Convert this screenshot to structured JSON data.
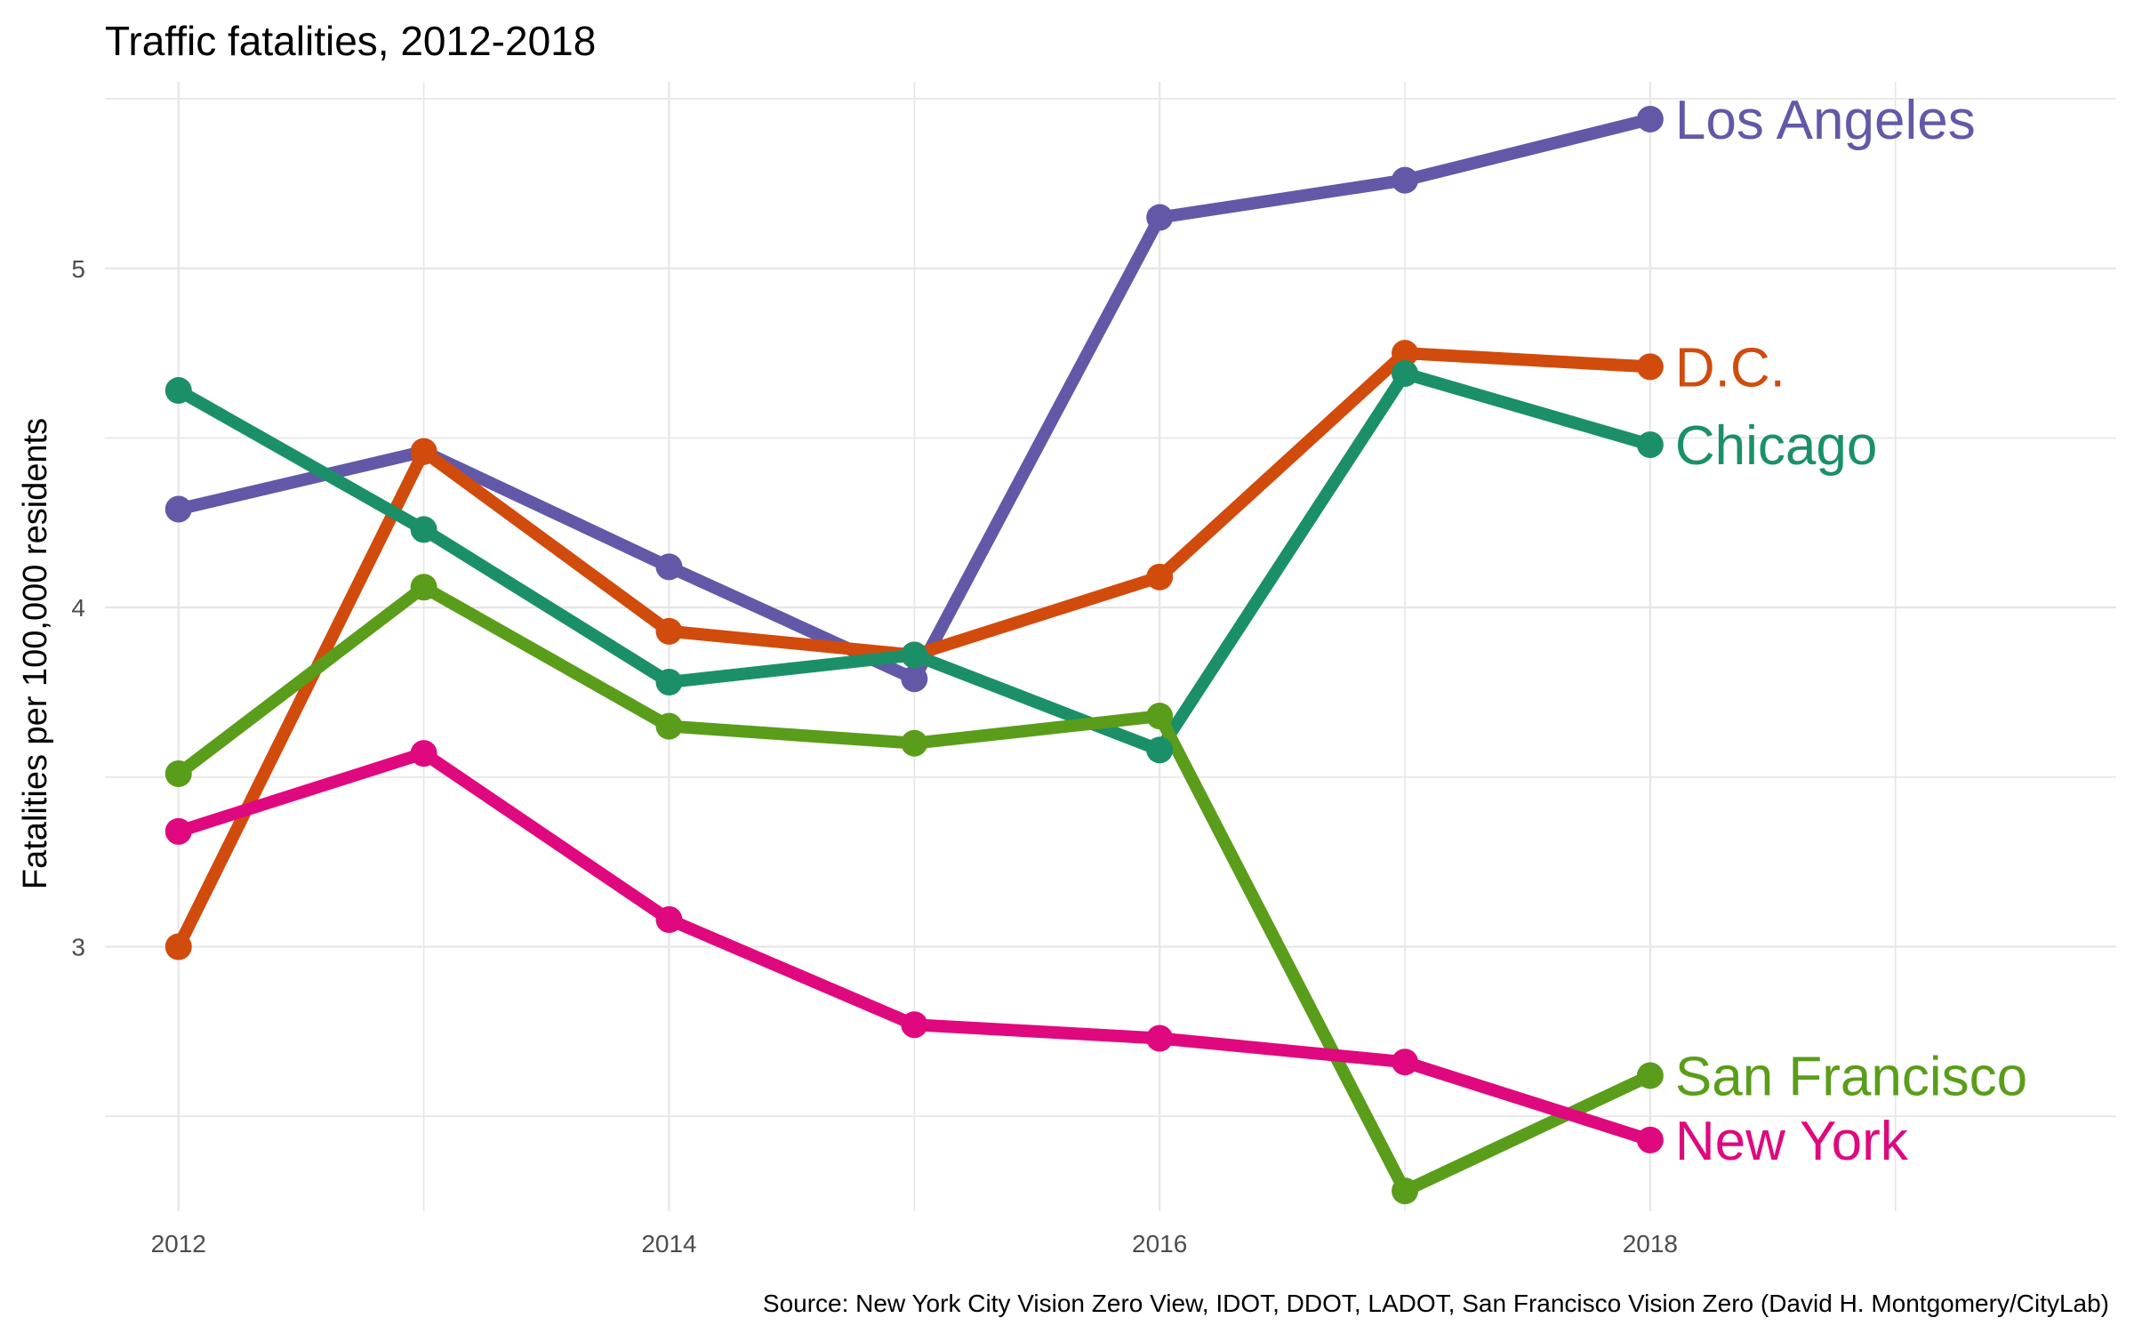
{
  "chart_data": {
    "type": "line",
    "title": "Traffic fatalities, 2012-2018",
    "xlabel": "",
    "ylabel": "Fatalities per 100,000 residents",
    "caption": "Source: New York City Vision Zero View, IDOT, DDOT, LADOT, San Francisco Vision Zero (David H. Montgomery/CityLab)",
    "x": [
      2012,
      2013,
      2014,
      2015,
      2016,
      2017,
      2018
    ],
    "xticks": [
      2012,
      2014,
      2016,
      2018
    ],
    "yticks": [
      3,
      4,
      5
    ],
    "xlim": [
      2011.7,
      2019.9
    ],
    "ylim": [
      2.22,
      5.55
    ],
    "grid": true,
    "legend": "direct labels at line ends",
    "series": [
      {
        "name": "Los Angeles",
        "color": "#6159a8",
        "values": [
          4.29,
          4.46,
          4.12,
          3.79,
          5.15,
          5.26,
          5.44
        ]
      },
      {
        "name": "D.C.",
        "color": "#d14b0d",
        "values": [
          3.0,
          4.46,
          3.93,
          3.86,
          4.09,
          4.75,
          4.71
        ]
      },
      {
        "name": "Chicago",
        "color": "#1b9068",
        "values": [
          4.64,
          4.23,
          3.78,
          3.86,
          3.58,
          4.69,
          4.48
        ]
      },
      {
        "name": "San Francisco",
        "color": "#5a9d1a",
        "values": [
          3.51,
          4.06,
          3.65,
          3.6,
          3.68,
          2.28,
          2.62
        ]
      },
      {
        "name": "New York",
        "color": "#e0087e",
        "values": [
          3.34,
          3.57,
          3.08,
          2.77,
          2.73,
          2.66,
          2.43
        ]
      }
    ]
  }
}
